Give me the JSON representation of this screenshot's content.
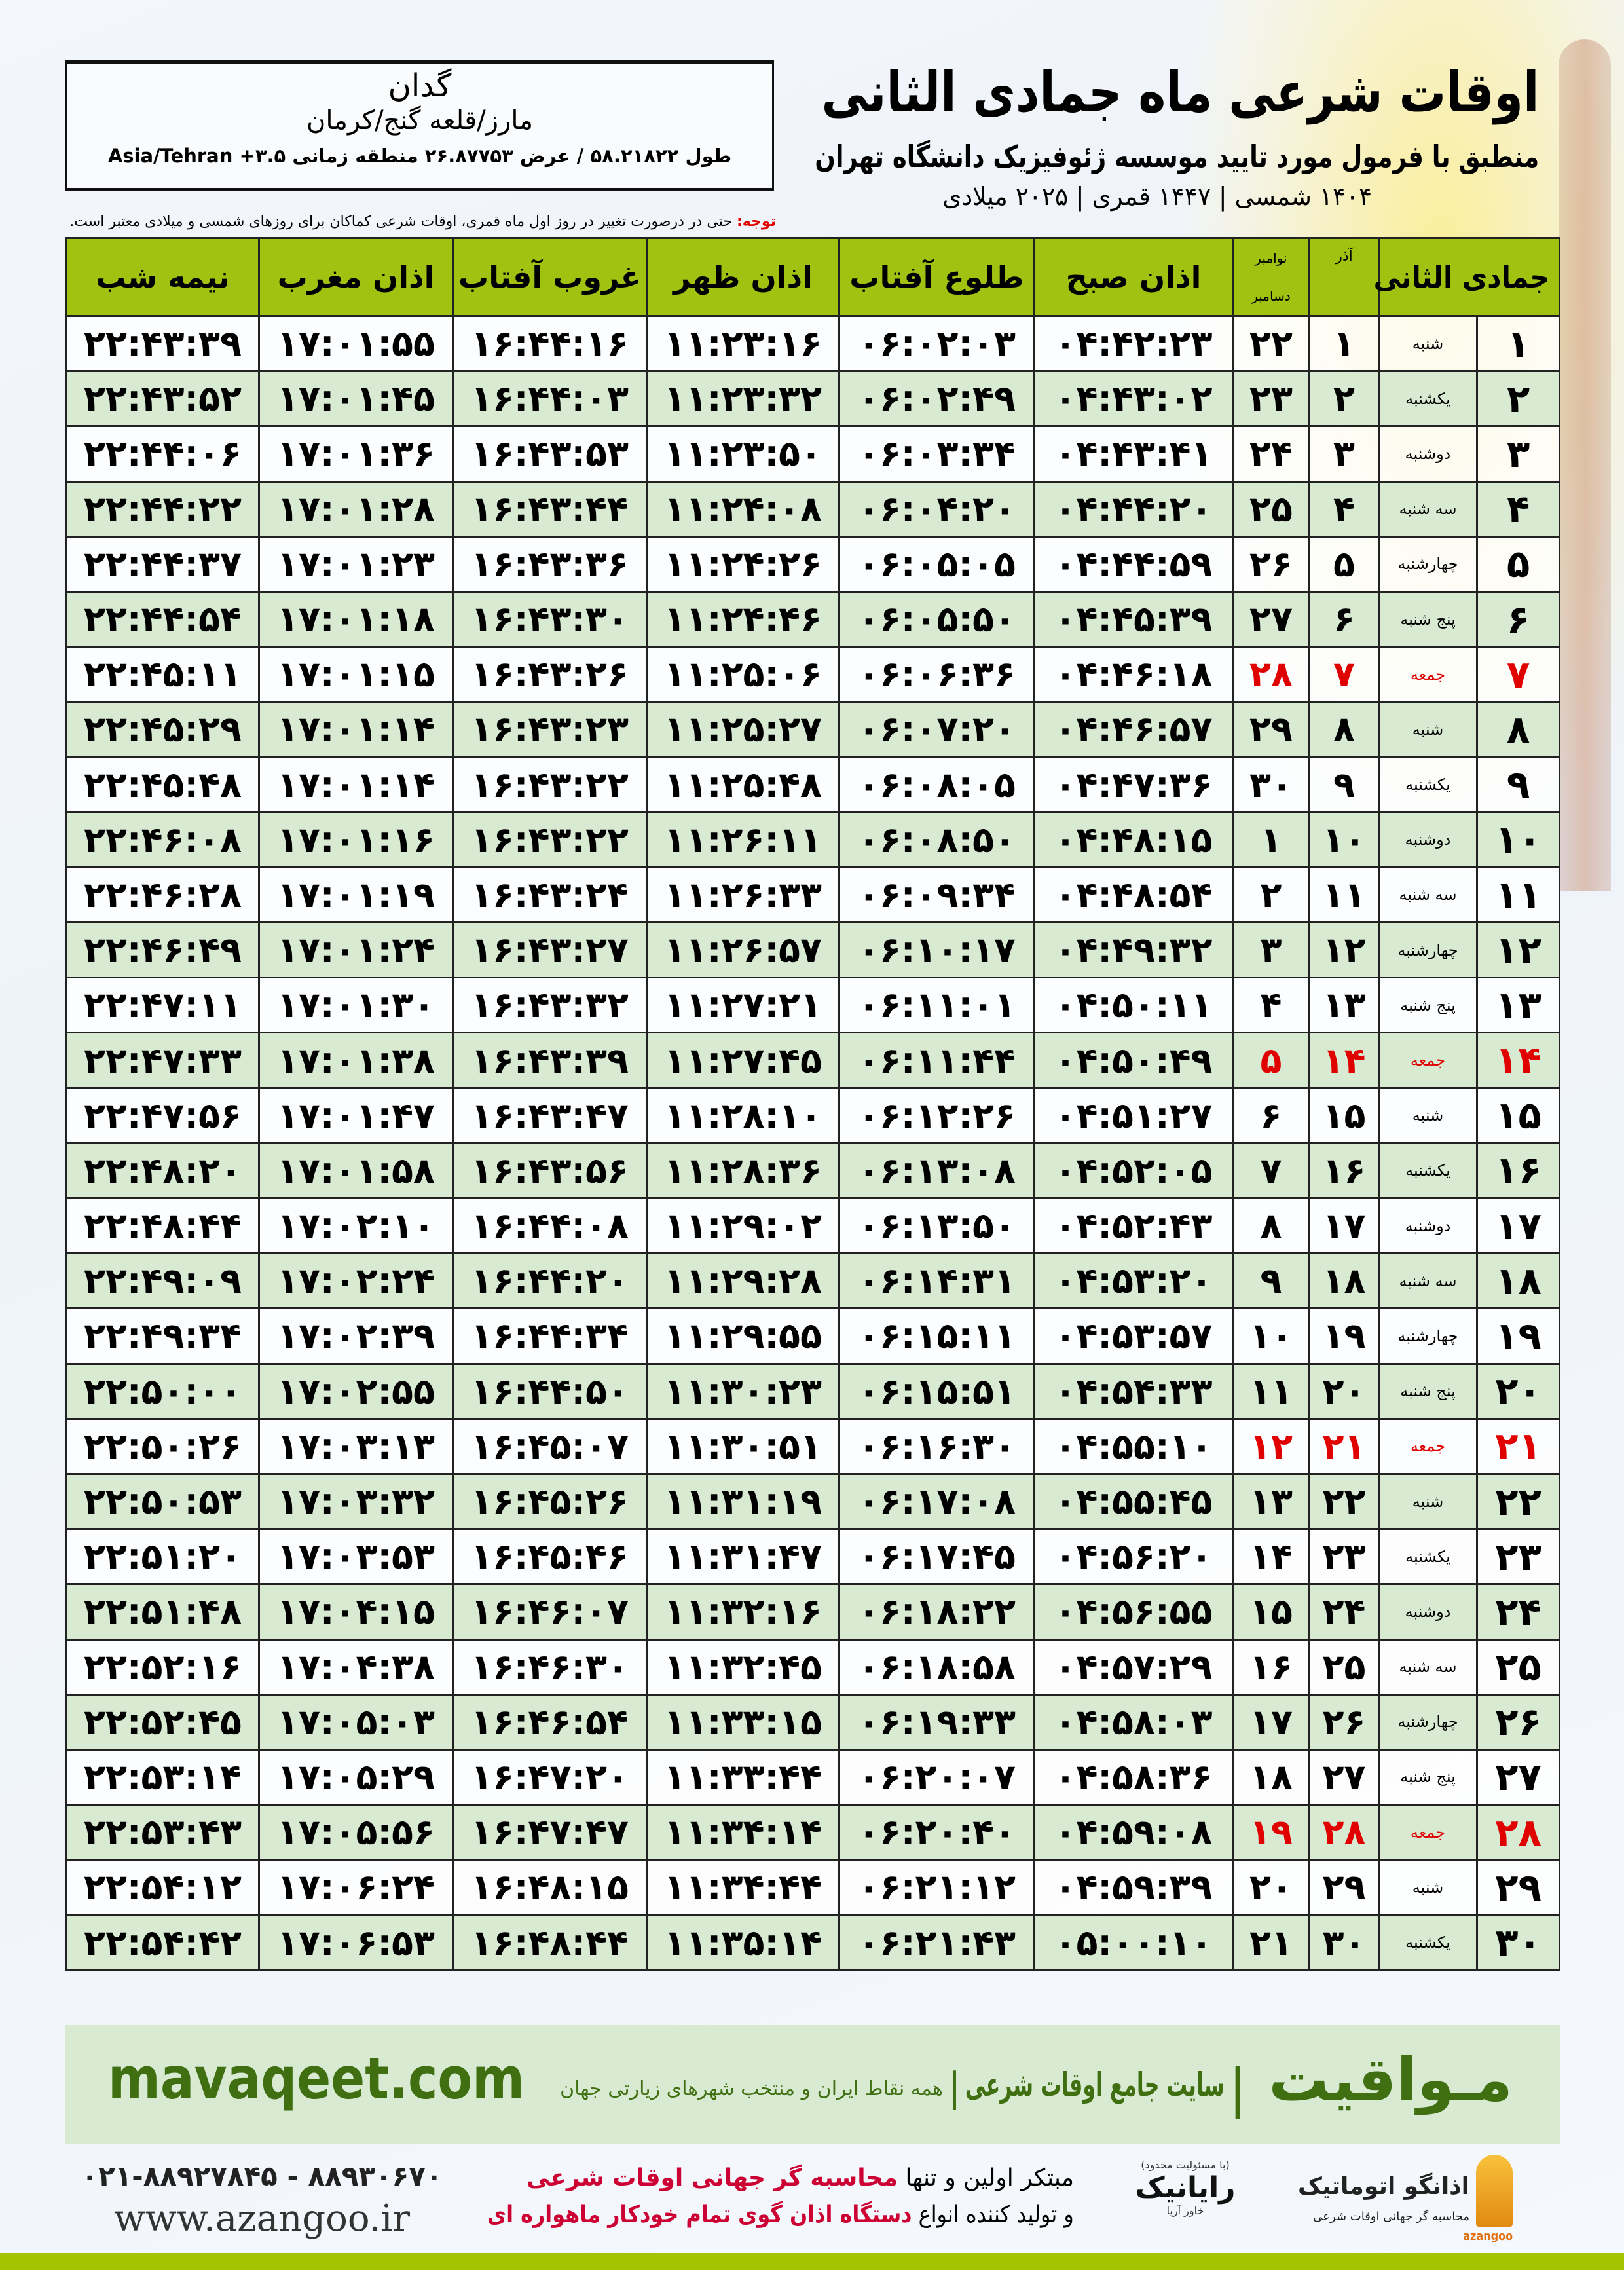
{
  "header": {
    "title": "اوقات شرعی ماه جمادی الثانی",
    "subtitle": "منطبق با فرمول مورد تایید موسسه ژئوفیزیک دانشگاه تهران",
    "dateline": "۱۴۰۴ شمسی | ۱۴۴۷ قمری | ۲۰۲۵ میلادی"
  },
  "location": {
    "city": "گدان",
    "region": "مارز/قلعه گنج/کرمان",
    "coords": "طول ۵۸.۲۱۸۲۲ / عرض ۲۶.۸۷۷۵۳ منطقه زمانی ۳.۵+ Asia/Tehran"
  },
  "note": {
    "label": "توجه:",
    "text": " حتی در درصورت تغییر در روز اول ماه قمری، اوقات شرعی کماکان برای روزهای شمسی و میلادی معتبر است."
  },
  "table": {
    "headers": {
      "month": "جمادی الثانی",
      "azar": "آذر",
      "nov": "نوامبر",
      "dec": "دسامبر",
      "fajr": "اذان صبح",
      "sunrise": "طلوع آفتاب",
      "dhuhr": "اذان ظهر",
      "sunset": "غروب آفتاب",
      "maghrib": "اذان مغرب",
      "midnight": "نیمه شب"
    },
    "friday_color": "#e00000",
    "header_color": "#a2c212",
    "alt_row_color": "#d9ead3",
    "rows": [
      {
        "day": "۱",
        "weekday": "شنبه",
        "azar": "۱",
        "greg": "۲۲",
        "fajr": "۰۴:۴۲:۲۳",
        "sunrise": "۰۶:۰۲:۰۳",
        "dhuhr": "۱۱:۲۳:۱۶",
        "sunset": "۱۶:۴۴:۱۶",
        "maghrib": "۱۷:۰۱:۵۵",
        "midnight": "۲۲:۴۳:۳۹",
        "friday": false
      },
      {
        "day": "۲",
        "weekday": "یکشنبه",
        "azar": "۲",
        "greg": "۲۳",
        "fajr": "۰۴:۴۳:۰۲",
        "sunrise": "۰۶:۰۲:۴۹",
        "dhuhr": "۱۱:۲۳:۳۲",
        "sunset": "۱۶:۴۴:۰۳",
        "maghrib": "۱۷:۰۱:۴۵",
        "midnight": "۲۲:۴۳:۵۲",
        "friday": false
      },
      {
        "day": "۳",
        "weekday": "دوشنبه",
        "azar": "۳",
        "greg": "۲۴",
        "fajr": "۰۴:۴۳:۴۱",
        "sunrise": "۰۶:۰۳:۳۴",
        "dhuhr": "۱۱:۲۳:۵۰",
        "sunset": "۱۶:۴۳:۵۳",
        "maghrib": "۱۷:۰۱:۳۶",
        "midnight": "۲۲:۴۴:۰۶",
        "friday": false
      },
      {
        "day": "۴",
        "weekday": "سه شنبه",
        "azar": "۴",
        "greg": "۲۵",
        "fajr": "۰۴:۴۴:۲۰",
        "sunrise": "۰۶:۰۴:۲۰",
        "dhuhr": "۱۱:۲۴:۰۸",
        "sunset": "۱۶:۴۳:۴۴",
        "maghrib": "۱۷:۰۱:۲۸",
        "midnight": "۲۲:۴۴:۲۲",
        "friday": false
      },
      {
        "day": "۵",
        "weekday": "چهارشنبه",
        "azar": "۵",
        "greg": "۲۶",
        "fajr": "۰۴:۴۴:۵۹",
        "sunrise": "۰۶:۰۵:۰۵",
        "dhuhr": "۱۱:۲۴:۲۶",
        "sunset": "۱۶:۴۳:۳۶",
        "maghrib": "۱۷:۰۱:۲۳",
        "midnight": "۲۲:۴۴:۳۷",
        "friday": false
      },
      {
        "day": "۶",
        "weekday": "پنج شنبه",
        "azar": "۶",
        "greg": "۲۷",
        "fajr": "۰۴:۴۵:۳۹",
        "sunrise": "۰۶:۰۵:۵۰",
        "dhuhr": "۱۱:۲۴:۴۶",
        "sunset": "۱۶:۴۳:۳۰",
        "maghrib": "۱۷:۰۱:۱۸",
        "midnight": "۲۲:۴۴:۵۴",
        "friday": false
      },
      {
        "day": "۷",
        "weekday": "جمعه",
        "azar": "۷",
        "greg": "۲۸",
        "fajr": "۰۴:۴۶:۱۸",
        "sunrise": "۰۶:۰۶:۳۶",
        "dhuhr": "۱۱:۲۵:۰۶",
        "sunset": "۱۶:۴۳:۲۶",
        "maghrib": "۱۷:۰۱:۱۵",
        "midnight": "۲۲:۴۵:۱۱",
        "friday": true
      },
      {
        "day": "۸",
        "weekday": "شنبه",
        "azar": "۸",
        "greg": "۲۹",
        "fajr": "۰۴:۴۶:۵۷",
        "sunrise": "۰۶:۰۷:۲۰",
        "dhuhr": "۱۱:۲۵:۲۷",
        "sunset": "۱۶:۴۳:۲۳",
        "maghrib": "۱۷:۰۱:۱۴",
        "midnight": "۲۲:۴۵:۲۹",
        "friday": false
      },
      {
        "day": "۹",
        "weekday": "یکشنبه",
        "azar": "۹",
        "greg": "۳۰",
        "fajr": "۰۴:۴۷:۳۶",
        "sunrise": "۰۶:۰۸:۰۵",
        "dhuhr": "۱۱:۲۵:۴۸",
        "sunset": "۱۶:۴۳:۲۲",
        "maghrib": "۱۷:۰۱:۱۴",
        "midnight": "۲۲:۴۵:۴۸",
        "friday": false
      },
      {
        "day": "۱۰",
        "weekday": "دوشنبه",
        "azar": "۱۰",
        "greg": "۱",
        "fajr": "۰۴:۴۸:۱۵",
        "sunrise": "۰۶:۰۸:۵۰",
        "dhuhr": "۱۱:۲۶:۱۱",
        "sunset": "۱۶:۴۳:۲۲",
        "maghrib": "۱۷:۰۱:۱۶",
        "midnight": "۲۲:۴۶:۰۸",
        "friday": false
      },
      {
        "day": "۱۱",
        "weekday": "سه شنبه",
        "azar": "۱۱",
        "greg": "۲",
        "fajr": "۰۴:۴۸:۵۴",
        "sunrise": "۰۶:۰۹:۳۴",
        "dhuhr": "۱۱:۲۶:۳۳",
        "sunset": "۱۶:۴۳:۲۴",
        "maghrib": "۱۷:۰۱:۱۹",
        "midnight": "۲۲:۴۶:۲۸",
        "friday": false
      },
      {
        "day": "۱۲",
        "weekday": "چهارشنبه",
        "azar": "۱۲",
        "greg": "۳",
        "fajr": "۰۴:۴۹:۳۲",
        "sunrise": "۰۶:۱۰:۱۷",
        "dhuhr": "۱۱:۲۶:۵۷",
        "sunset": "۱۶:۴۳:۲۷",
        "maghrib": "۱۷:۰۱:۲۴",
        "midnight": "۲۲:۴۶:۴۹",
        "friday": false
      },
      {
        "day": "۱۳",
        "weekday": "پنج شنبه",
        "azar": "۱۳",
        "greg": "۴",
        "fajr": "۰۴:۵۰:۱۱",
        "sunrise": "۰۶:۱۱:۰۱",
        "dhuhr": "۱۱:۲۷:۲۱",
        "sunset": "۱۶:۴۳:۳۲",
        "maghrib": "۱۷:۰۱:۳۰",
        "midnight": "۲۲:۴۷:۱۱",
        "friday": false
      },
      {
        "day": "۱۴",
        "weekday": "جمعه",
        "azar": "۱۴",
        "greg": "۵",
        "fajr": "۰۴:۵۰:۴۹",
        "sunrise": "۰۶:۱۱:۴۴",
        "dhuhr": "۱۱:۲۷:۴۵",
        "sunset": "۱۶:۴۳:۳۹",
        "maghrib": "۱۷:۰۱:۳۸",
        "midnight": "۲۲:۴۷:۳۳",
        "friday": true
      },
      {
        "day": "۱۵",
        "weekday": "شنبه",
        "azar": "۱۵",
        "greg": "۶",
        "fajr": "۰۴:۵۱:۲۷",
        "sunrise": "۰۶:۱۲:۲۶",
        "dhuhr": "۱۱:۲۸:۱۰",
        "sunset": "۱۶:۴۳:۴۷",
        "maghrib": "۱۷:۰۱:۴۷",
        "midnight": "۲۲:۴۷:۵۶",
        "friday": false
      },
      {
        "day": "۱۶",
        "weekday": "یکشنبه",
        "azar": "۱۶",
        "greg": "۷",
        "fajr": "۰۴:۵۲:۰۵",
        "sunrise": "۰۶:۱۳:۰۸",
        "dhuhr": "۱۱:۲۸:۳۶",
        "sunset": "۱۶:۴۳:۵۶",
        "maghrib": "۱۷:۰۱:۵۸",
        "midnight": "۲۲:۴۸:۲۰",
        "friday": false
      },
      {
        "day": "۱۷",
        "weekday": "دوشنبه",
        "azar": "۱۷",
        "greg": "۸",
        "fajr": "۰۴:۵۲:۴۳",
        "sunrise": "۰۶:۱۳:۵۰",
        "dhuhr": "۱۱:۲۹:۰۲",
        "sunset": "۱۶:۴۴:۰۸",
        "maghrib": "۱۷:۰۲:۱۰",
        "midnight": "۲۲:۴۸:۴۴",
        "friday": false
      },
      {
        "day": "۱۸",
        "weekday": "سه شنبه",
        "azar": "۱۸",
        "greg": "۹",
        "fajr": "۰۴:۵۳:۲۰",
        "sunrise": "۰۶:۱۴:۳۱",
        "dhuhr": "۱۱:۲۹:۲۸",
        "sunset": "۱۶:۴۴:۲۰",
        "maghrib": "۱۷:۰۲:۲۴",
        "midnight": "۲۲:۴۹:۰۹",
        "friday": false
      },
      {
        "day": "۱۹",
        "weekday": "چهارشنبه",
        "azar": "۱۹",
        "greg": "۱۰",
        "fajr": "۰۴:۵۳:۵۷",
        "sunrise": "۰۶:۱۵:۱۱",
        "dhuhr": "۱۱:۲۹:۵۵",
        "sunset": "۱۶:۴۴:۳۴",
        "maghrib": "۱۷:۰۲:۳۹",
        "midnight": "۲۲:۴۹:۳۴",
        "friday": false
      },
      {
        "day": "۲۰",
        "weekday": "پنج شنبه",
        "azar": "۲۰",
        "greg": "۱۱",
        "fajr": "۰۴:۵۴:۳۳",
        "sunrise": "۰۶:۱۵:۵۱",
        "dhuhr": "۱۱:۳۰:۲۳",
        "sunset": "۱۶:۴۴:۵۰",
        "maghrib": "۱۷:۰۲:۵۵",
        "midnight": "۲۲:۵۰:۰۰",
        "friday": false
      },
      {
        "day": "۲۱",
        "weekday": "جمعه",
        "azar": "۲۱",
        "greg": "۱۲",
        "fajr": "۰۴:۵۵:۱۰",
        "sunrise": "۰۶:۱۶:۳۰",
        "dhuhr": "۱۱:۳۰:۵۱",
        "sunset": "۱۶:۴۵:۰۷",
        "maghrib": "۱۷:۰۳:۱۳",
        "midnight": "۲۲:۵۰:۲۶",
        "friday": true
      },
      {
        "day": "۲۲",
        "weekday": "شنبه",
        "azar": "۲۲",
        "greg": "۱۳",
        "fajr": "۰۴:۵۵:۴۵",
        "sunrise": "۰۶:۱۷:۰۸",
        "dhuhr": "۱۱:۳۱:۱۹",
        "sunset": "۱۶:۴۵:۲۶",
        "maghrib": "۱۷:۰۳:۳۲",
        "midnight": "۲۲:۵۰:۵۳",
        "friday": false
      },
      {
        "day": "۲۳",
        "weekday": "یکشنبه",
        "azar": "۲۳",
        "greg": "۱۴",
        "fajr": "۰۴:۵۶:۲۰",
        "sunrise": "۰۶:۱۷:۴۵",
        "dhuhr": "۱۱:۳۱:۴۷",
        "sunset": "۱۶:۴۵:۴۶",
        "maghrib": "۱۷:۰۳:۵۳",
        "midnight": "۲۲:۵۱:۲۰",
        "friday": false
      },
      {
        "day": "۲۴",
        "weekday": "دوشنبه",
        "azar": "۲۴",
        "greg": "۱۵",
        "fajr": "۰۴:۵۶:۵۵",
        "sunrise": "۰۶:۱۸:۲۲",
        "dhuhr": "۱۱:۳۲:۱۶",
        "sunset": "۱۶:۴۶:۰۷",
        "maghrib": "۱۷:۰۴:۱۵",
        "midnight": "۲۲:۵۱:۴۸",
        "friday": false
      },
      {
        "day": "۲۵",
        "weekday": "سه شنبه",
        "azar": "۲۵",
        "greg": "۱۶",
        "fajr": "۰۴:۵۷:۲۹",
        "sunrise": "۰۶:۱۸:۵۸",
        "dhuhr": "۱۱:۳۲:۴۵",
        "sunset": "۱۶:۴۶:۳۰",
        "maghrib": "۱۷:۰۴:۳۸",
        "midnight": "۲۲:۵۲:۱۶",
        "friday": false
      },
      {
        "day": "۲۶",
        "weekday": "چهارشنبه",
        "azar": "۲۶",
        "greg": "۱۷",
        "fajr": "۰۴:۵۸:۰۳",
        "sunrise": "۰۶:۱۹:۳۳",
        "dhuhr": "۱۱:۳۳:۱۵",
        "sunset": "۱۶:۴۶:۵۴",
        "maghrib": "۱۷:۰۵:۰۳",
        "midnight": "۲۲:۵۲:۴۵",
        "friday": false
      },
      {
        "day": "۲۷",
        "weekday": "پنج شنبه",
        "azar": "۲۷",
        "greg": "۱۸",
        "fajr": "۰۴:۵۸:۳۶",
        "sunrise": "۰۶:۲۰:۰۷",
        "dhuhr": "۱۱:۳۳:۴۴",
        "sunset": "۱۶:۴۷:۲۰",
        "maghrib": "۱۷:۰۵:۲۹",
        "midnight": "۲۲:۵۳:۱۴",
        "friday": false
      },
      {
        "day": "۲۸",
        "weekday": "جمعه",
        "azar": "۲۸",
        "greg": "۱۹",
        "fajr": "۰۴:۵۹:۰۸",
        "sunrise": "۰۶:۲۰:۴۰",
        "dhuhr": "۱۱:۳۴:۱۴",
        "sunset": "۱۶:۴۷:۴۷",
        "maghrib": "۱۷:۰۵:۵۶",
        "midnight": "۲۲:۵۳:۴۳",
        "friday": true
      },
      {
        "day": "۲۹",
        "weekday": "شنبه",
        "azar": "۲۹",
        "greg": "۲۰",
        "fajr": "۰۴:۵۹:۳۹",
        "sunrise": "۰۶:۲۱:۱۲",
        "dhuhr": "۱۱:۳۴:۴۴",
        "sunset": "۱۶:۴۸:۱۵",
        "maghrib": "۱۷:۰۶:۲۴",
        "midnight": "۲۲:۵۴:۱۲",
        "friday": false
      },
      {
        "day": "۳۰",
        "weekday": "یکشنبه",
        "azar": "۳۰",
        "greg": "۲۱",
        "fajr": "۰۵:۰۰:۱۰",
        "sunrise": "۰۶:۲۱:۴۳",
        "dhuhr": "۱۱:۳۵:۱۴",
        "sunset": "۱۶:۴۸:۴۴",
        "maghrib": "۱۷:۰۶:۵۳",
        "midnight": "۲۲:۵۴:۴۲",
        "friday": false
      }
    ]
  },
  "footer": {
    "brand": "مـواقیت",
    "sep": "|",
    "tagline": "سایت جامع اوقات شرعی",
    "tagline2": "همه نقاط ایران و منتخب شهرهای زیارتی جهان",
    "site": "mavaqeet.com",
    "phones": "۰۲۱-۸۸۹۲۷۸۴۵ - ۸۸۹۳۰۶۷۰",
    "azangoo_site": "www.azangoo.ir",
    "promo1a": "مبتکر اولین و تنها ",
    "promo1b": "محاسبه گر جهانی اوقات شرعی",
    "promo2a": "و تولید کننده انواع ",
    "promo2b": "دستگاه اذان گوی تمام خودکار ماهواره ای",
    "rayanik": "رایانیک",
    "rayanik_small": "(با مسئولیت محدود)",
    "rayanik_sub": "خاور آریا",
    "azangoo_name": "اذانگو اتوماتیک",
    "azangoo_sub": "محاسبه گر جهانی اوقات شرعی",
    "azangoo_en": "azangoo",
    "accent": "#3f6f10"
  }
}
